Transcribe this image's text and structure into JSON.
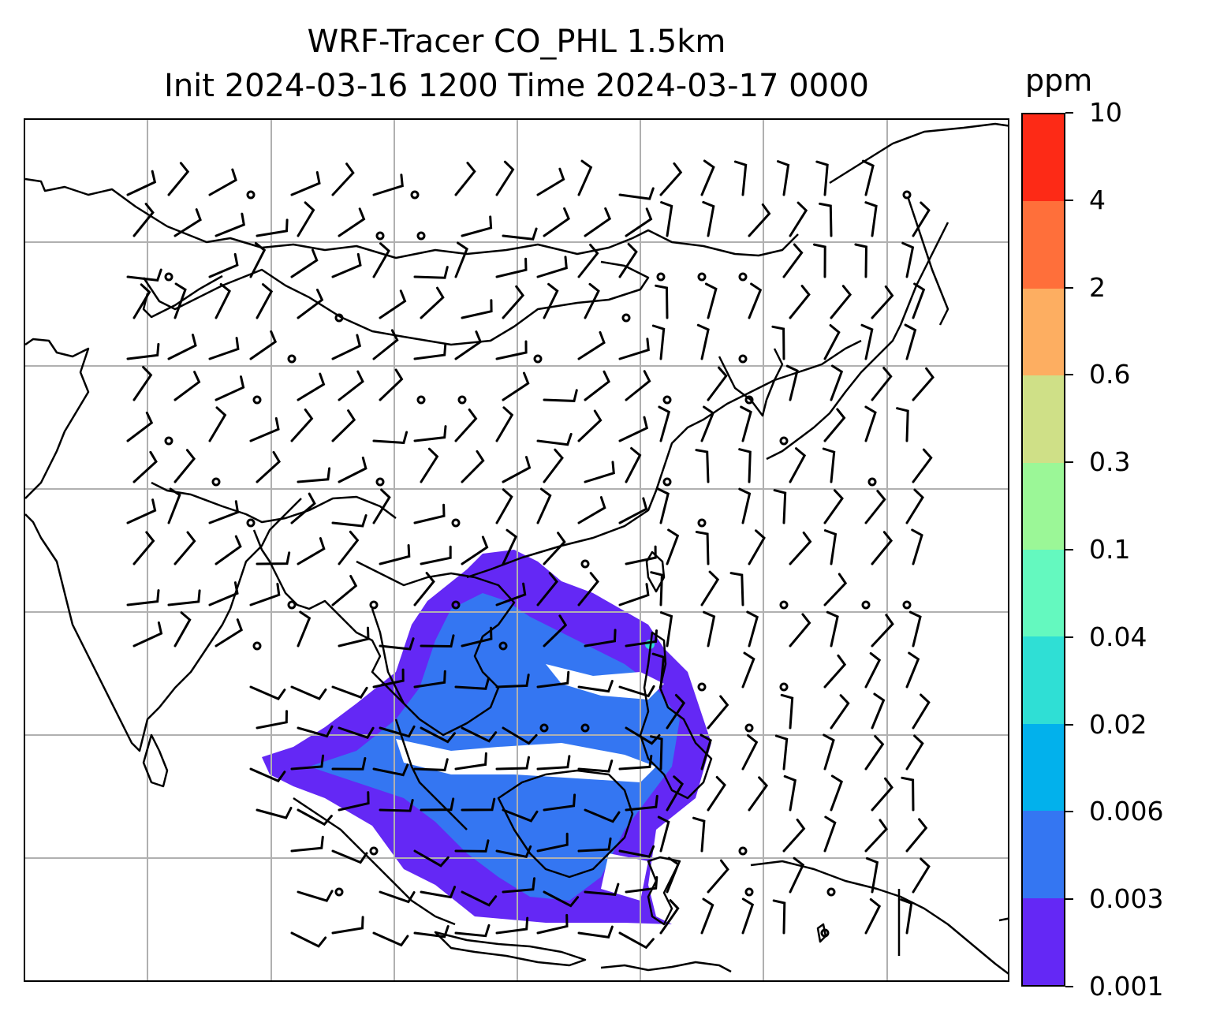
{
  "title": {
    "line1": "WRF-Tracer CO_PHL 1.5km",
    "line2": "Init 2024-03-16 1200 Time 2024-03-17 0000"
  },
  "colorbar": {
    "unit": "ppm",
    "levels": [
      "0.001",
      "0.003",
      "0.006",
      "0.02",
      "0.04",
      "0.1",
      "0.3",
      "0.6",
      "2",
      "4",
      "10"
    ],
    "colors": [
      "#6428f5",
      "#3476f2",
      "#02b1ec",
      "#2fdfd5",
      "#64f9bf",
      "#9bf797",
      "#cfe087",
      "#fdae61",
      "#ff6f3a",
      "#fd2a16"
    ]
  },
  "map": {
    "gridlines": true,
    "coastline_color": "#000000",
    "grid_color": "#b0b0b0",
    "wind_barbs": "black",
    "plume_colors": [
      "#6428f5",
      "#3476f2",
      "#2fdfd5"
    ]
  }
}
